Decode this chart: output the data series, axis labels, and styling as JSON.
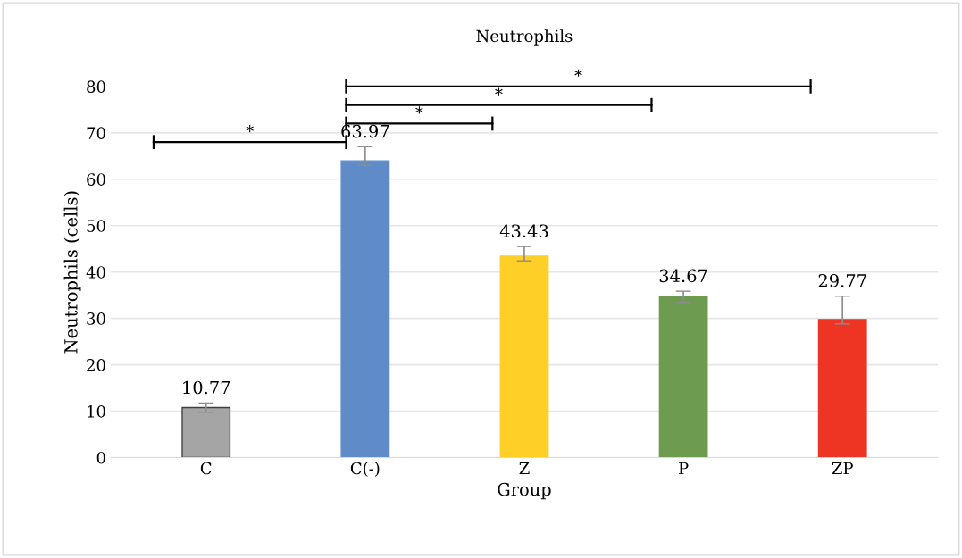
{
  "chart_data": {
    "type": "bar",
    "title": "Neutrophils",
    "xlabel": "Group",
    "ylabel": "Neutrophils (cells)",
    "categories": [
      "C",
      "C(-)",
      "Z",
      "P",
      "ZP"
    ],
    "values": [
      10.77,
      63.97,
      43.43,
      34.67,
      29.77
    ],
    "colors": [
      "#a5a5a5",
      "#5f8bc9",
      "#fecf26",
      "#6d9c51",
      "#ee3524"
    ],
    "errors": [
      1,
      [
        63,
        67
      ],
      [
        42.4,
        45.5
      ],
      1.2,
      [
        28.8,
        34.8
      ]
    ],
    "data_labels": true,
    "ylim": [
      0,
      80
    ],
    "yticks": [
      0,
      10,
      20,
      30,
      40,
      50,
      60,
      70,
      80
    ],
    "grid": "y",
    "annotations": [
      "*",
      "*",
      "*",
      "*"
    ]
  }
}
